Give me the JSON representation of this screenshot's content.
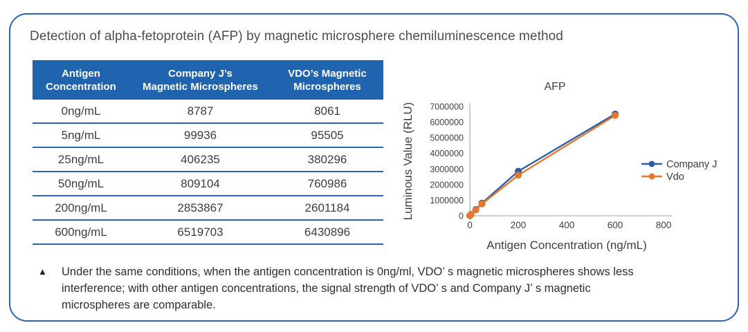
{
  "card": {
    "title": "Detection of alpha-fetoprotein (AFP) by magnetic microsphere chemiluminescence method"
  },
  "table": {
    "headers": [
      [
        "Antigen",
        "Concentration"
      ],
      [
        "Company J’s",
        "Magnetic Microspheres"
      ],
      [
        "VDO’s Magnetic",
        "Microspheres"
      ]
    ],
    "rows": [
      [
        "0ng/mL",
        "8787",
        "8061"
      ],
      [
        "5ng/mL",
        "99936",
        "95505"
      ],
      [
        "25ng/mL",
        "406235",
        "380296"
      ],
      [
        "50ng/mL",
        "809104",
        "760986"
      ],
      [
        "200ng/mL",
        "2853867",
        "2601184"
      ],
      [
        "600ng/mL",
        "6519703",
        "6430896"
      ]
    ]
  },
  "chart_data": {
    "type": "line",
    "title": "AFP",
    "xlabel": "Antigen Concentration (ng/mL)",
    "ylabel": "Luminous Value (RLU)",
    "x": [
      0,
      5,
      25,
      50,
      200,
      600
    ],
    "series": [
      {
        "name": "Company J",
        "color": "#2e5fa6",
        "values": [
          8787,
          99936,
          406235,
          809104,
          2853867,
          6519703
        ]
      },
      {
        "name": "Vdo",
        "color": "#e4772e",
        "values": [
          8061,
          95505,
          380296,
          760986,
          2601184,
          6430896
        ]
      }
    ],
    "xlim": [
      0,
      800
    ],
    "ylim": [
      0,
      7000000
    ],
    "xticks": [
      0,
      200,
      400,
      600,
      800
    ],
    "yticks": [
      0,
      1000000,
      2000000,
      3000000,
      4000000,
      5000000,
      6000000,
      7000000
    ],
    "grid": false,
    "legend_position": "right"
  },
  "footnote": {
    "marker": "▲",
    "lines": [
      "Under the same conditions, when the antigen concentration is 0ng/ml, VDO’ s magnetic microspheres shows less",
      "interference; with other antigen concentrations, the signal strength of VDO’ s and Company J’ s magnetic",
      "microspheres are comparable."
    ]
  },
  "colors": {
    "card_border": "#2d63b5",
    "table_header_bg": "#2063af",
    "row_divider": "#2767b2",
    "series_company_j": "#2e5fa6",
    "series_vdo": "#e4772e",
    "axis_line": "#bfbfbf",
    "tick_text": "#404040"
  }
}
